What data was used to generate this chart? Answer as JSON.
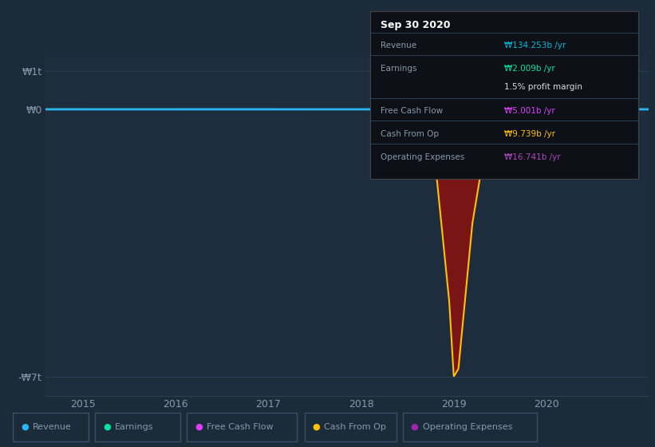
{
  "background_color": "#1c2b3a",
  "plot_bg_color": "#1e2d3d",
  "infobox_bg": "#0d1117",
  "title_box": {
    "date": "Sep 30 2020",
    "rows": [
      {
        "label": "Revenue",
        "value": "₩134.253b /yr",
        "value_color": "#00bcd4"
      },
      {
        "label": "Earnings",
        "value": "₩2.009b /yr",
        "value_color": "#00e5a0"
      },
      {
        "label": "",
        "value": "1.5% profit margin",
        "value_color": "#dddddd"
      },
      {
        "label": "Free Cash Flow",
        "value": "₩5.001b /yr",
        "value_color": "#e040fb"
      },
      {
        "label": "Cash From Op",
        "value": "₩9.739b /yr",
        "value_color": "#ffc107"
      },
      {
        "label": "Operating Expenses",
        "value": "₩16.741b /yr",
        "value_color": "#ab47bc"
      }
    ]
  },
  "yticks_labels": [
    "₩1t",
    "₩0",
    "-₩7t"
  ],
  "ytick_values": [
    1000,
    0,
    -7000
  ],
  "ylim": [
    -7500,
    1400
  ],
  "xlim_start": 2014.6,
  "xlim_end": 2021.1,
  "xtick_labels": [
    "2015",
    "2016",
    "2017",
    "2018",
    "2019",
    "2020"
  ],
  "xtick_positions": [
    2015,
    2016,
    2017,
    2018,
    2019,
    2020
  ],
  "grid_color": "#2a3f55",
  "revenue_color": "#29b6f6",
  "earnings_color": "#00e5a0",
  "fcf_color": "#e040fb",
  "cashop_color": "#ffc107",
  "opex_color": "#9c27b0",
  "fill_color": "#7a1515",
  "legend_items": [
    {
      "label": "Revenue",
      "color": "#29b6f6"
    },
    {
      "label": "Earnings",
      "color": "#00e5a0"
    },
    {
      "label": "Free Cash Flow",
      "color": "#e040fb"
    },
    {
      "label": "Cash From Op",
      "color": "#ffc107"
    },
    {
      "label": "Operating Expenses",
      "color": "#9c27b0"
    }
  ],
  "label_color": "#8899aa",
  "tick_color": "#8899aa"
}
